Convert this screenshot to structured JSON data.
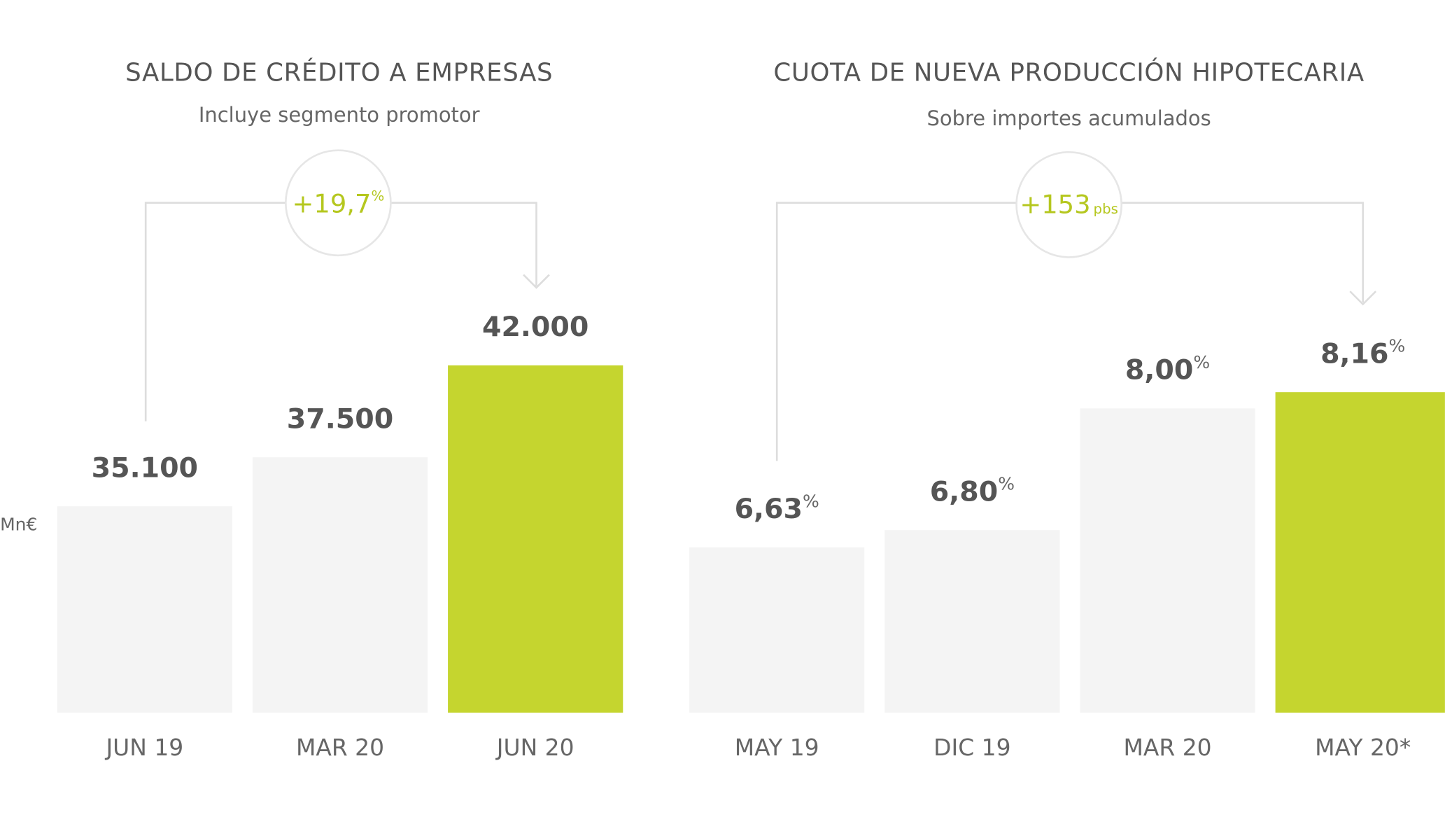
{
  "chart_data": [
    {
      "type": "bar",
      "title": "SALDO DE CRÉDITO A EMPRESAS",
      "subtitle": "Incluye segmento promotor",
      "y_label": "Mn€",
      "annotation": "+19,7",
      "annotation_unit": "%",
      "categories": [
        "JUN 19",
        "MAR 20",
        "JUN 20"
      ],
      "values": [
        35100,
        37500,
        42000
      ],
      "value_labels": [
        "35.100",
        "37.500",
        "42.000"
      ],
      "colors": [
        "#f4f4f4",
        "#f4f4f4",
        "#c5d52f"
      ],
      "ylim": [
        25000,
        44000
      ]
    },
    {
      "type": "bar",
      "title": "CUOTA DE NUEVA PRODUCCIÓN HIPOTECARIA",
      "subtitle": "Sobre importes acumulados",
      "annotation": "+153",
      "annotation_unit": "pbs",
      "value_unit": "%",
      "categories": [
        "MAY 19",
        "DIC 19",
        "MAR 20",
        "MAY 20*"
      ],
      "values": [
        6.63,
        6.8,
        8.0,
        8.16
      ],
      "value_labels": [
        "6,63",
        "6,80",
        "8,00",
        "8,16"
      ],
      "colors": [
        "#f4f4f4",
        "#f4f4f4",
        "#f4f4f4",
        "#c5d52f"
      ],
      "ylim": [
        5,
        8.5
      ]
    }
  ]
}
